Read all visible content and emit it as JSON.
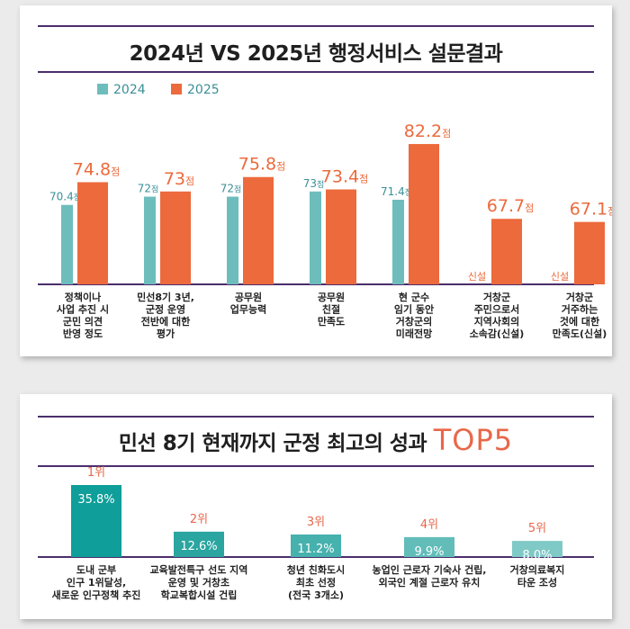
{
  "chart_data": [
    {
      "type": "bar",
      "title": "2024년 VS 2025년 행정서비스 설문결과",
      "categories": [
        [
          "정책이나",
          "사업 추진 시",
          "군민 의견",
          "반영 정도"
        ],
        [
          "민선8기 3년,",
          "군정 운영",
          "전반에 대한",
          "평가"
        ],
        [
          "공무원",
          "업무능력"
        ],
        [
          "공무원",
          "친절",
          "만족도"
        ],
        [
          "현 군수",
          "임기 동안",
          "거창군의",
          "미래전망"
        ],
        [
          "거창군",
          "주민으로서",
          "지역사회의",
          "소속감(신설)"
        ],
        [
          "거창군",
          "거주하는",
          "것에 대한",
          "만족도(신설)"
        ]
      ],
      "series": [
        {
          "name": "2024",
          "color": "#6dbdbd",
          "values": [
            70.4,
            72,
            72,
            73,
            71.4,
            null,
            null
          ]
        },
        {
          "name": "2025",
          "color": "#ec6a3c",
          "values": [
            74.8,
            73,
            75.8,
            73.4,
            82.2,
            67.7,
            67.1
          ]
        }
      ],
      "value_labels": {
        "2024": [
          "70.4",
          "72",
          "72",
          "73",
          "71.4",
          "신설",
          "신설"
        ],
        "2025": [
          "74.8",
          "73",
          "75.8",
          "73.4",
          "82.2",
          "67.7",
          "67.1"
        ]
      },
      "unit": "점",
      "ylim": [
        55,
        85
      ],
      "legend_position": "top-left",
      "grid": false
    },
    {
      "type": "bar",
      "title": "민선 8기 현재까지 군정 최고의 성과",
      "title_accent": "TOP5",
      "categories": [
        [
          "도내 군부",
          "인구 1위달성,",
          "새로운 인구정책 추진"
        ],
        [
          "교육발전특구 선도 지역",
          "운영 및 거창초",
          "학교복합시설 건립"
        ],
        [
          "청년 친화도시",
          "최초 선정",
          "(전국 3개소)"
        ],
        [
          "농업인 근로자 기숙사 건립,",
          "외국인 계절 근로자 유치"
        ],
        [
          "거창의료복지",
          "타운 조성"
        ]
      ],
      "ranks": [
        "1위",
        "2위",
        "3위",
        "4위",
        "5위"
      ],
      "values": [
        35.8,
        12.6,
        11.2,
        9.9,
        8.0
      ],
      "value_labels": [
        "35.8%",
        "12.6%",
        "11.2%",
        "9.9%",
        "8.0%"
      ],
      "colors": [
        "#0f9e99",
        "#2aa5a0",
        "#46b1ad",
        "#62bdb9",
        "#7fc9c6"
      ],
      "ylim": [
        0,
        40
      ],
      "grid": false
    }
  ]
}
